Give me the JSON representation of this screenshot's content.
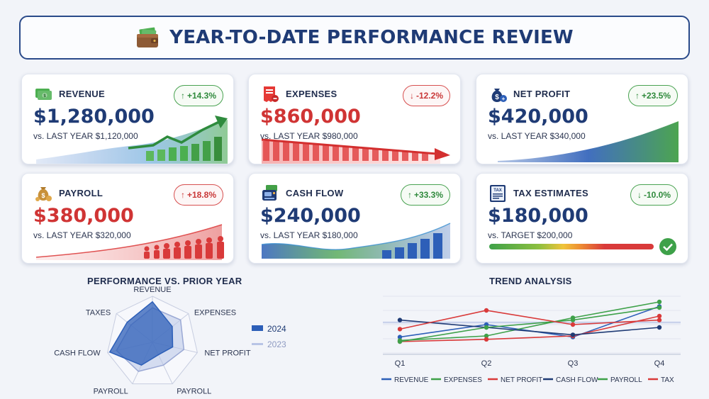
{
  "header": {
    "title": "YEAR-TO-DATE PERFORMANCE REVIEW",
    "icon": "wallet-icon"
  },
  "cards": [
    {
      "id": "revenue",
      "title": "REVENUE",
      "value": "$1,280,000",
      "compare": "vs. LAST YEAR  $1,120,000",
      "change": "+14.3%",
      "direction": "up",
      "value_color": "#1f3b75",
      "icon": "money-stack-icon"
    },
    {
      "id": "expenses",
      "title": "EXPENSES",
      "value": "$860,000",
      "compare": "vs. LAST YEAR  $980,000",
      "change": "-12.2%",
      "direction": "down",
      "value_color": "#d03434",
      "icon": "receipt-icon"
    },
    {
      "id": "net-profit",
      "title": "NET PROFIT",
      "value": "$420,000",
      "compare": "vs. LAST YEAR  $340,000",
      "change": "+23.5%",
      "direction": "up",
      "value_color": "#1f3b75",
      "icon": "money-bag-icon"
    },
    {
      "id": "payroll",
      "title": "PAYROLL",
      "value": "$380,000",
      "compare": "vs. LAST YEAR  $320,000",
      "change": "+18.8%",
      "direction": "up-red",
      "value_color": "#d03434",
      "icon": "payroll-bag-icon"
    },
    {
      "id": "cash-flow",
      "title": "CASH FLOW",
      "value": "$240,000",
      "compare": "vs. LAST YEAR  $180,000",
      "change": "+33.3%",
      "direction": "up",
      "value_color": "#1f3b75",
      "icon": "cash-register-icon"
    },
    {
      "id": "tax-estimates",
      "title": "TAX ESTIMATES",
      "value": "$180,000",
      "compare": "vs. TARGET  $200,000",
      "change": "-10.0%",
      "direction": "down-green",
      "value_color": "#1f3b75",
      "icon": "tax-form-icon"
    }
  ],
  "colors": {
    "blue": "#2d5fb8",
    "green": "#3ea149",
    "red": "#d93a3a",
    "navy": "#1f3b75",
    "lightblue": "#b8c4e6"
  },
  "chart_data": [
    {
      "type": "radar",
      "title": "PERFORMANCE VS. PRIOR YEAR",
      "axes": [
        "REVENUE",
        "EXPENSES",
        "NET PROFIT",
        "PAYROLL",
        "PAYROLL",
        "CASH FLOW",
        "TAXES"
      ],
      "series": [
        {
          "name": "2024",
          "values": [
            0.88,
            0.55,
            0.45,
            0.3,
            0.55,
            0.95,
            0.7
          ]
        },
        {
          "name": "2023",
          "values": [
            0.75,
            0.78,
            0.7,
            0.55,
            0.7,
            0.8,
            0.6
          ]
        }
      ],
      "legend": "right"
    },
    {
      "type": "line",
      "title": "TREND ANALYSIS",
      "categories": [
        "Q1",
        "Q2",
        "Q3",
        "Q4"
      ],
      "series": [
        {
          "name": "REVENUE",
          "values": [
            0.28,
            0.5,
            0.28,
            0.82
          ]
        },
        {
          "name": "EXPENSES",
          "values": [
            0.22,
            0.3,
            0.62,
            0.9
          ]
        },
        {
          "name": "NET PROFIT",
          "values": [
            0.2,
            0.24,
            0.3,
            0.65
          ]
        },
        {
          "name": "CASH FLOW",
          "values": [
            0.58,
            0.45,
            0.32,
            0.45
          ]
        },
        {
          "name": "PAYROLL",
          "values": [
            0.2,
            0.45,
            0.58,
            0.8
          ]
        },
        {
          "name": "TAX",
          "values": [
            0.42,
            0.75,
            0.5,
            0.58
          ]
        }
      ],
      "legend": "bottom"
    }
  ]
}
